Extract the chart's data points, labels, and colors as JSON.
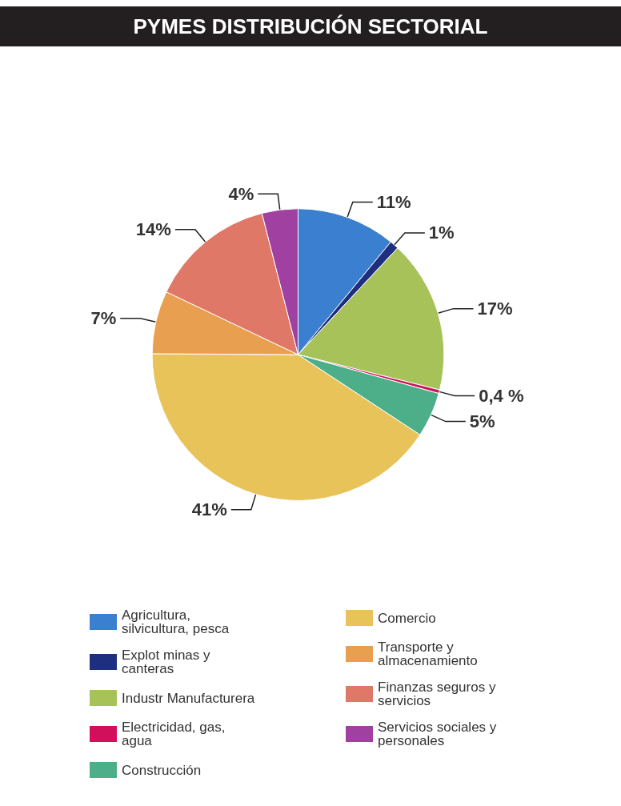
{
  "chart_data": {
    "type": "pie",
    "title": "PYMES DISTRIBUCIÓN SECTORIAL",
    "categories": [
      "Agricultura, silvicultura, pesca",
      "Explot minas y canteras",
      "Industr Manufacturera",
      "Electricidad, gas, agua",
      "Construcción",
      "Comercio",
      "Transporte y almacenamiento",
      "Finanzas seguros y servicios",
      "Servicios sociales y personales"
    ],
    "values": [
      11,
      1,
      17,
      0.4,
      5,
      41,
      7,
      14,
      4
    ],
    "colors": [
      "#3a7fd0",
      "#1f2f80",
      "#a8c25a",
      "#d0105a",
      "#4caf8a",
      "#e8c35a",
      "#e8a050",
      "#e07868",
      "#a040a0"
    ],
    "value_labels": [
      "11%",
      "1%",
      "17%",
      "0,4 %",
      "5%",
      "41%",
      "7%",
      "14%",
      "4%"
    ],
    "legend": "bottom"
  }
}
